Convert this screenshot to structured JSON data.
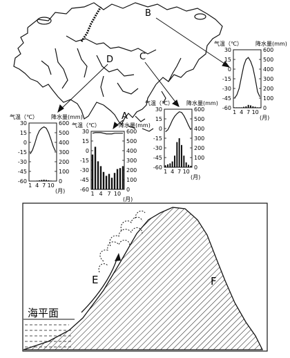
{
  "map": {
    "labels": {
      "A": "A",
      "B": "B",
      "C": "C",
      "D": "D"
    }
  },
  "climate_charts": {
    "temp_label": "气温（℃）",
    "precip_label": "降水量(mm)",
    "temp_ticks": [
      "30",
      "15",
      "0",
      "-15",
      "-30",
      "-45",
      "-60"
    ],
    "precip_ticks": [
      "600",
      "500",
      "400",
      "300",
      "200",
      "100",
      "0"
    ],
    "month_ticks": [
      "1",
      "4",
      "7",
      "10"
    ],
    "month_unit": "(月)"
  },
  "chart_data": [
    {
      "type": "line",
      "name": "B",
      "x": [
        1,
        2,
        3,
        4,
        5,
        6,
        7,
        8,
        9,
        10,
        11,
        12
      ],
      "temperature": [
        -45,
        -40,
        -30,
        -12,
        5,
        15,
        18,
        12,
        2,
        -15,
        -35,
        -43
      ],
      "precipitation": [
        5,
        5,
        5,
        5,
        10,
        15,
        30,
        25,
        15,
        10,
        5,
        5
      ],
      "ylim_temp": [
        -60,
        30
      ],
      "ylim_precip": [
        0,
        600
      ]
    },
    {
      "type": "line",
      "name": "D",
      "x": [
        1,
        2,
        3,
        4,
        5,
        6,
        7,
        8,
        9,
        10,
        11,
        12
      ],
      "temperature": [
        -18,
        -12,
        -2,
        10,
        18,
        22,
        24,
        22,
        15,
        5,
        -6,
        -14
      ],
      "precipitation": [
        3,
        3,
        3,
        5,
        8,
        12,
        15,
        12,
        8,
        5,
        3,
        3
      ],
      "ylim_temp": [
        -60,
        30
      ],
      "ylim_precip": [
        0,
        600
      ]
    },
    {
      "type": "line",
      "name": "A",
      "x": [
        1,
        2,
        3,
        4,
        5,
        6,
        7,
        8,
        9,
        10,
        11,
        12
      ],
      "temperature": [
        27,
        28,
        28,
        28,
        27,
        26,
        26,
        26,
        27,
        27,
        27,
        27
      ],
      "precipitation": [
        360,
        440,
        290,
        240,
        180,
        140,
        160,
        120,
        170,
        210,
        220,
        240
      ],
      "ylim_temp": [
        -60,
        30
      ],
      "ylim_precip": [
        0,
        600
      ]
    },
    {
      "type": "line",
      "name": "C",
      "x": [
        1,
        2,
        3,
        4,
        5,
        6,
        7,
        8,
        9,
        10,
        11,
        12
      ],
      "temperature": [
        -5,
        -2,
        5,
        13,
        19,
        23,
        26,
        25,
        20,
        13,
        5,
        -2
      ],
      "precipitation": [
        20,
        30,
        40,
        60,
        120,
        260,
        300,
        230,
        120,
        50,
        25,
        15
      ],
      "ylim_temp": [
        -60,
        30
      ],
      "ylim_precip": [
        0,
        600
      ]
    }
  ],
  "mountain": {
    "label_e": "E",
    "label_f": "F",
    "sea_level": "海平面"
  }
}
